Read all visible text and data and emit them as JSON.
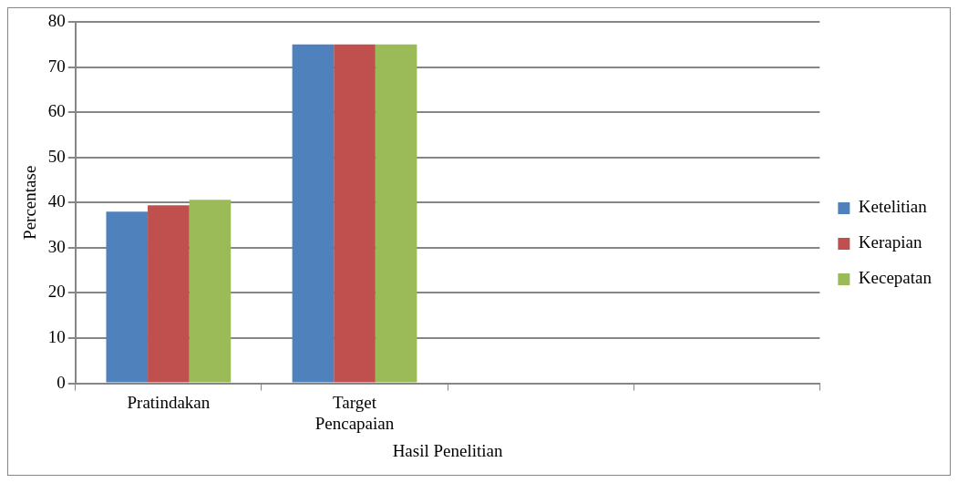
{
  "chart_data": {
    "type": "bar",
    "xlabel": "Hasil Penelitian",
    "ylabel": "Percentase",
    "categories": [
      "Pratindakan",
      "Target Pencapaian",
      null,
      null
    ],
    "series": [
      {
        "name": "Ketelitian",
        "color": "#4f81bd",
        "values": [
          38.0,
          75,
          null,
          null
        ]
      },
      {
        "name": "Kerapian",
        "color": "#c0504d",
        "values": [
          39.4,
          75,
          null,
          null
        ]
      },
      {
        "name": "Kecepatan",
        "color": "#9bbb59",
        "values": [
          40.6,
          75,
          null,
          null
        ]
      }
    ],
    "ylim": [
      0,
      80
    ],
    "yticks": [
      0,
      10,
      20,
      30,
      40,
      50,
      60,
      70,
      80
    ],
    "grid": "y",
    "legend": "right"
  }
}
